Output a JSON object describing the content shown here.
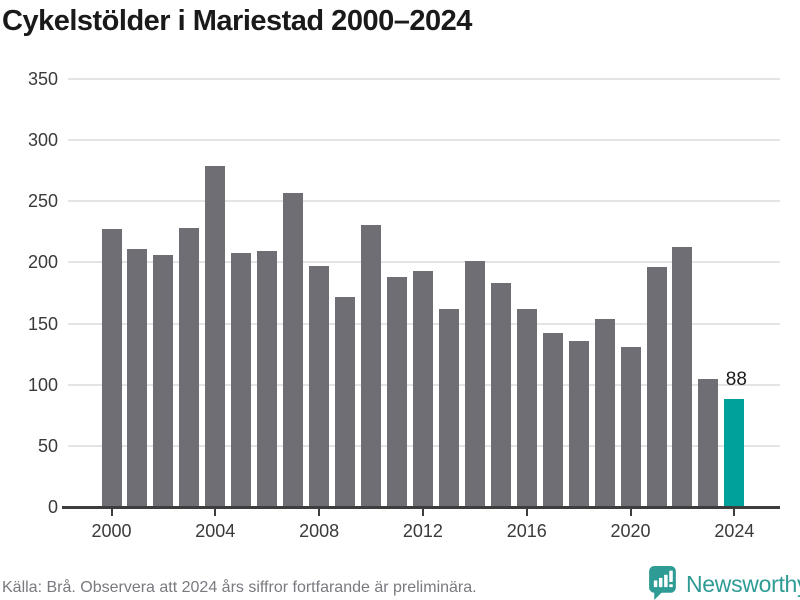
{
  "title": "Cykelstölder i Mariestad 2000–2024",
  "chart_data": {
    "type": "bar",
    "title": "Cykelstölder i Mariestad 2000–2024",
    "categories": [
      2000,
      2001,
      2002,
      2003,
      2004,
      2005,
      2006,
      2007,
      2008,
      2009,
      2010,
      2011,
      2012,
      2013,
      2014,
      2015,
      2016,
      2017,
      2018,
      2019,
      2020,
      2021,
      2022,
      2023,
      2024
    ],
    "values": [
      227,
      211,
      206,
      228,
      279,
      208,
      209,
      257,
      197,
      172,
      231,
      188,
      193,
      162,
      201,
      183,
      162,
      142,
      136,
      154,
      131,
      196,
      213,
      105,
      88
    ],
    "bar_color": "#6e6e74",
    "highlight": {
      "category": 2024,
      "value": 88,
      "label": "88",
      "color": "#00a19a"
    },
    "xlabel": "",
    "ylabel": "",
    "ylim": [
      0,
      350
    ],
    "yticks": [
      0,
      50,
      100,
      150,
      200,
      250,
      300,
      350
    ],
    "xticks": [
      2000,
      2004,
      2008,
      2012,
      2016,
      2020,
      2024
    ],
    "grid": "horizontal",
    "legend": "none"
  },
  "footer": {
    "source": "Källa: Brå. Observera att 2024 års siffror fortfarande är preliminära.",
    "brand": "Newsworthy",
    "brand_color": "#2e9b94"
  }
}
